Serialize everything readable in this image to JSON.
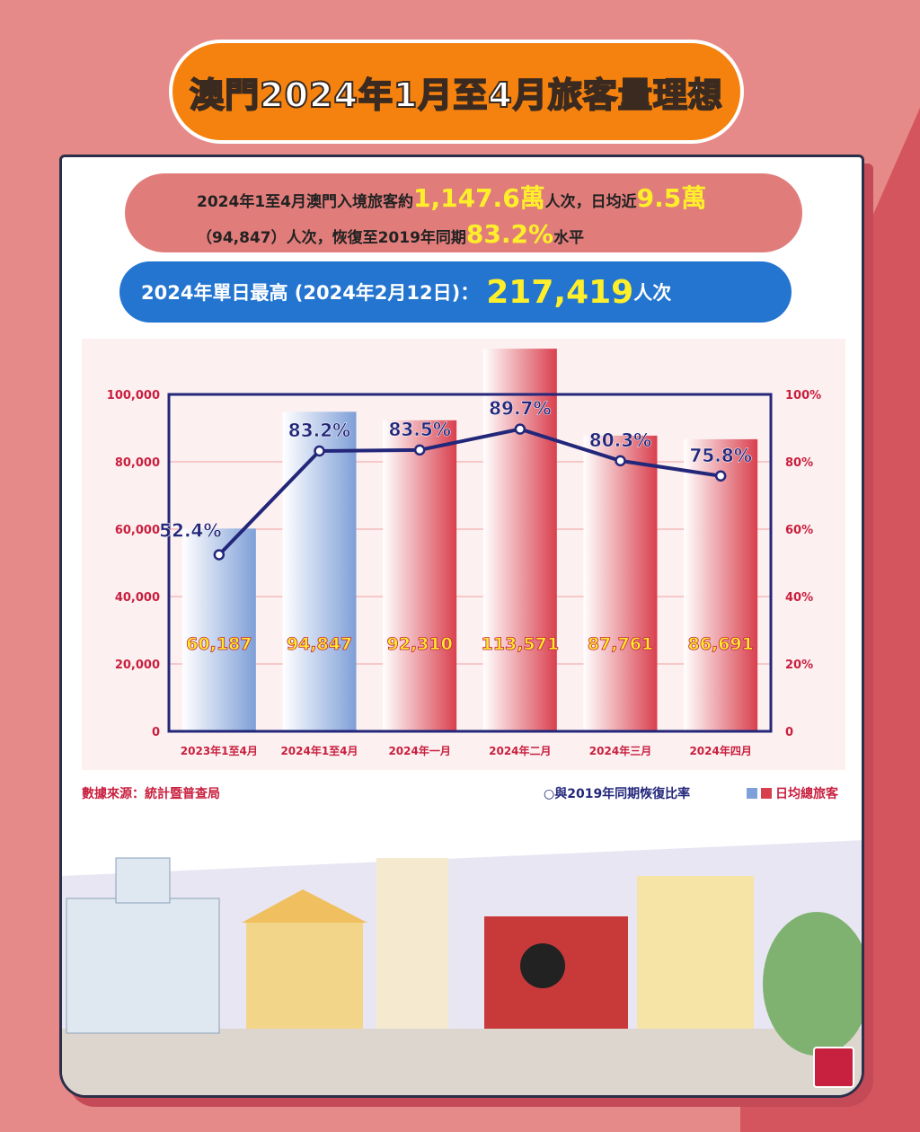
{
  "title": "澳門2024年1月至4月旅客量理想",
  "summary": {
    "p1": "2024年1至4月澳門入境旅客約",
    "v1": "1,147.6萬",
    "p2": "人次，日均近",
    "v2": "9.5萬",
    "p3": "（94,847）人次，恢復至2019年同期",
    "v3": "83.2%",
    "p4": "水平"
  },
  "peak": {
    "label": "2024年單日最高 (2024年2月12日)：",
    "value": "217,419",
    "unit": "人次"
  },
  "source": "數據來源：統計暨普查局",
  "legend": {
    "line": "與2019年同期恢復比率",
    "bars": "日均總旅客"
  },
  "colors": {
    "bar_2023_2024ytd": "#7f9fd8",
    "bar_monthly": "#d9404e",
    "line": "#23277a",
    "value_label": "#ffef2a"
  },
  "chart_data": {
    "type": "bar+line",
    "categories": [
      "2023年1至4月",
      "2024年1至4月",
      "2024年一月",
      "2024年二月",
      "2024年三月",
      "2024年四月"
    ],
    "bars": {
      "name": "日均總旅客",
      "values": [
        60187,
        94847,
        92310,
        113571,
        87761,
        86691
      ],
      "labels": [
        "60,187",
        "94,847",
        "92,310",
        "113,571",
        "87,761",
        "86,691"
      ]
    },
    "line": {
      "name": "與2019年同期恢復比率",
      "values": [
        52.4,
        83.2,
        83.5,
        89.7,
        80.3,
        75.8
      ],
      "labels": [
        "52.4%",
        "83.2%",
        "83.5%",
        "89.7%",
        "80.3%",
        "75.8%"
      ]
    },
    "y_left": {
      "range": [
        0,
        100000
      ],
      "ticks": [
        "0",
        "20,000",
        "40,000",
        "60,000",
        "80,000",
        "100,000"
      ]
    },
    "y_right": {
      "range": [
        0,
        100
      ],
      "ticks": [
        "0",
        "20%",
        "40%",
        "60%",
        "80%",
        "100%"
      ]
    },
    "grid": true
  }
}
